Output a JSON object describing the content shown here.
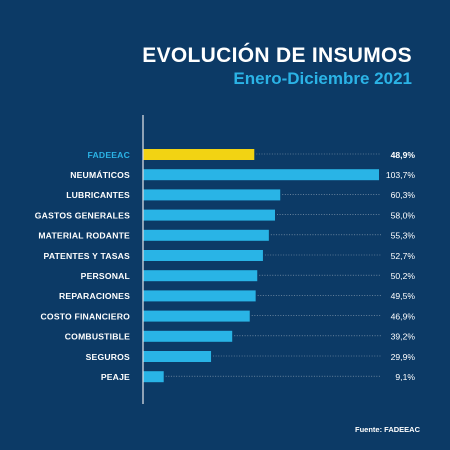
{
  "title": "EVOLUCIÓN DE INSUMOS",
  "subtitle": "Enero-Diciembre 2021",
  "source": "Fuente: FADEEAC",
  "colors": {
    "background": "#0c3a66",
    "bar": "#29b4e6",
    "highlight_bar": "#f2d313",
    "highlight_label": "#2bb3e6",
    "text": "#ffffff",
    "axis": "#d6dbe0"
  },
  "chart_data": {
    "type": "bar",
    "orientation": "horizontal",
    "title": "EVOLUCIÓN DE INSUMOS",
    "subtitle": "Enero-Diciembre 2021",
    "categories": [
      "FADEEAC",
      "NEUMÁTICOS",
      "LUBRICANTES",
      "GASTOS GENERALES",
      "MATERIAL RODANTE",
      "PATENTES Y TASAS",
      "PERSONAL",
      "REPARACIONES",
      "COSTO FINANCIERO",
      "COMBUSTIBLE",
      "SEGUROS",
      "PEAJE"
    ],
    "values": [
      48.9,
      103.7,
      60.3,
      58.0,
      55.3,
      52.7,
      50.2,
      49.5,
      46.9,
      39.2,
      29.9,
      9.1
    ],
    "value_labels": [
      "48,9%",
      "103,7%",
      "60,3%",
      "58,0%",
      "55,3%",
      "52,7%",
      "50,2%",
      "49,5%",
      "46,9%",
      "39,2%",
      "29,9%",
      "9,1%"
    ],
    "highlight_index": 0,
    "xlim": [
      0,
      103.7
    ],
    "grid": false,
    "legend": "none",
    "source": "Fuente: FADEEAC"
  }
}
